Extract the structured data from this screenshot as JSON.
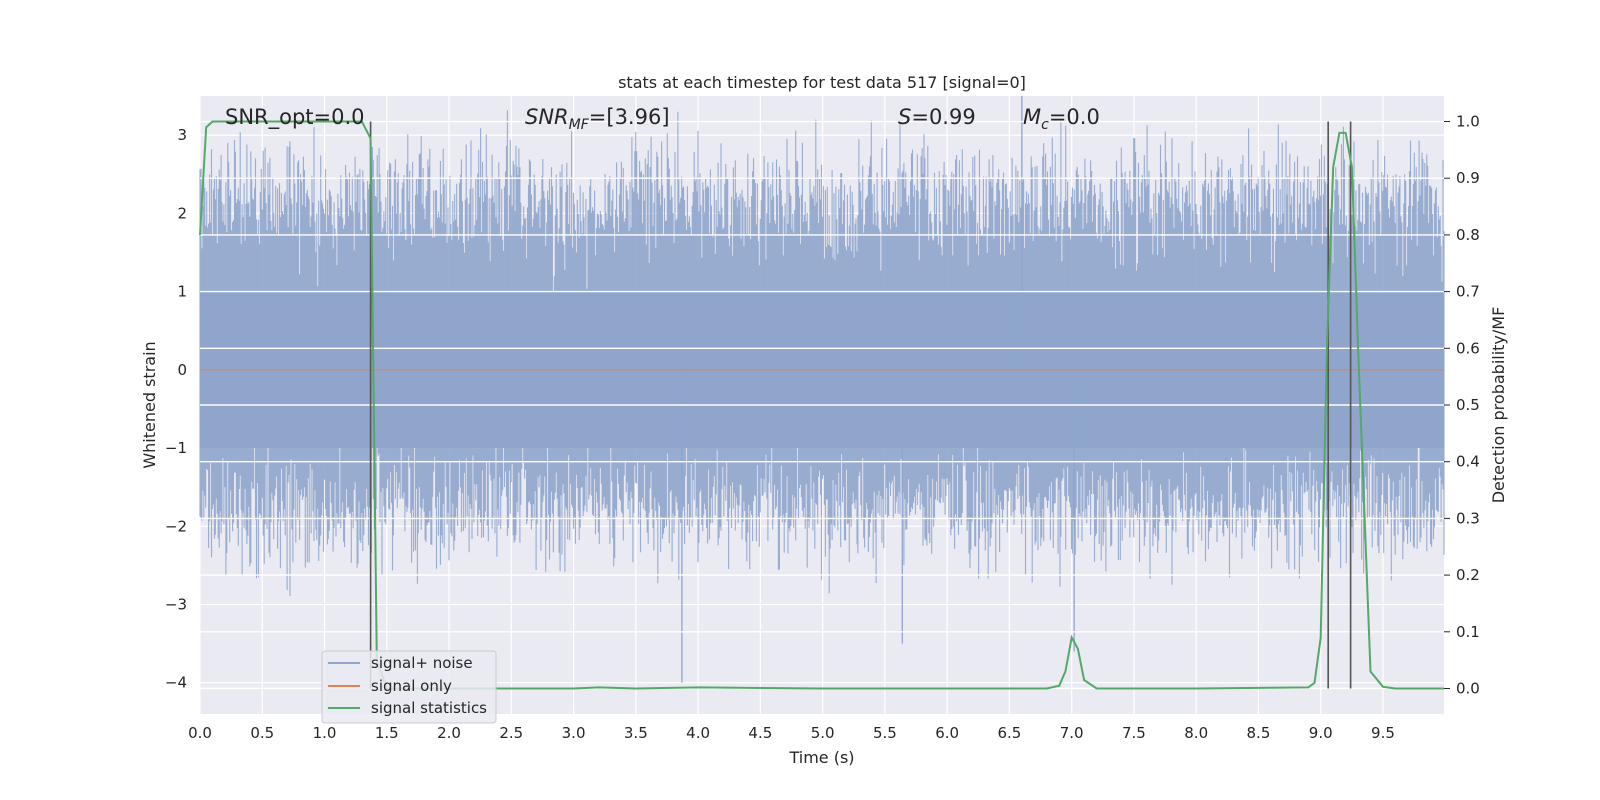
{
  "chart_data": {
    "type": "line",
    "title": "stats at each timestep for test data 517 [signal=0]",
    "xlabel": "Time (s)",
    "ylabel": "Whitened strain",
    "y2label": "Detection probability/MF",
    "xlim": [
      0.0,
      9.99
    ],
    "ylim": [
      -4.4,
      3.5
    ],
    "y2lim": [
      -0.045,
      1.045
    ],
    "xticks": [
      "0.0",
      "0.5",
      "1.0",
      "1.5",
      "2.0",
      "2.5",
      "3.0",
      "3.5",
      "4.0",
      "4.5",
      "5.0",
      "5.5",
      "6.0",
      "6.5",
      "7.0",
      "7.5",
      "8.0",
      "8.5",
      "9.0",
      "9.5"
    ],
    "yticks": [
      -4,
      -3,
      -2,
      -1,
      0,
      1,
      2,
      3
    ],
    "ytick_labels": [
      "−4",
      "−3",
      "−2",
      "−1",
      "0",
      "1",
      "2",
      "3"
    ],
    "y2ticks": [
      0.0,
      0.1,
      0.2,
      0.3,
      0.4,
      0.5,
      0.6,
      0.7,
      0.8,
      0.9,
      1.0
    ],
    "y2tick_labels": [
      "0.0",
      "0.1",
      "0.2",
      "0.3",
      "0.4",
      "0.5",
      "0.6",
      "0.7",
      "0.8",
      "0.9",
      "1.0"
    ],
    "grid": true,
    "legend_position": "lower-left",
    "annotations": {
      "snr_opt": "SNR_opt=0.0",
      "snr_mf_sym": "SNR",
      "snr_mf_sub": "MF",
      "snr_mf_val": "=[3.96]",
      "s_sym": "S",
      "s_val": "=0.99",
      "mc_sym": "M",
      "mc_sub": "c",
      "mc_val": "=0.0"
    },
    "vertical_lines": [
      1.37,
      9.06,
      9.24
    ],
    "series": [
      {
        "name": "signal+ noise",
        "color": "#8fa5cc",
        "axis": "left",
        "description": "whitened noisy strain, dense fluctuation approx. between -2.5 and 3.3 with outliers to -4.0 near t=3.87",
        "envelope": {
          "typical_low": -1.8,
          "typical_high": 2.2,
          "spike_low": -4.0,
          "spike_high": 3.6
        },
        "outliers": [
          {
            "x": 3.87,
            "y": -4.0
          },
          {
            "x": 5.64,
            "y": -3.5
          },
          {
            "x": 6.6,
            "y": 3.5
          },
          {
            "x": 7.02,
            "y": -3.6
          }
        ]
      },
      {
        "name": "signal only",
        "color": "#dd8452",
        "axis": "left",
        "x": [
          0.0,
          9.99
        ],
        "y": [
          0.0,
          0.0
        ]
      },
      {
        "name": "signal statistics",
        "color": "#55a868",
        "axis": "right",
        "x": [
          0.0,
          0.05,
          0.1,
          0.2,
          0.5,
          1.0,
          1.3,
          1.37,
          1.42,
          1.5,
          2.0,
          3.0,
          3.2,
          3.5,
          4.0,
          5.0,
          6.0,
          6.8,
          6.9,
          6.95,
          7.0,
          7.05,
          7.1,
          7.2,
          7.3,
          8.0,
          8.9,
          8.95,
          9.0,
          9.05,
          9.1,
          9.15,
          9.2,
          9.25,
          9.3,
          9.4,
          9.5,
          9.6,
          9.99
        ],
        "y": [
          0.8,
          0.99,
          1.0,
          1.0,
          1.0,
          1.0,
          1.0,
          0.97,
          0.05,
          0.0,
          0.0,
          0.0,
          0.002,
          0.0,
          0.002,
          0.0,
          0.0,
          0.0,
          0.005,
          0.03,
          0.09,
          0.07,
          0.015,
          0.0,
          0.0,
          0.0,
          0.002,
          0.01,
          0.09,
          0.6,
          0.92,
          0.98,
          0.98,
          0.92,
          0.6,
          0.03,
          0.003,
          0.0,
          0.0
        ]
      }
    ]
  }
}
